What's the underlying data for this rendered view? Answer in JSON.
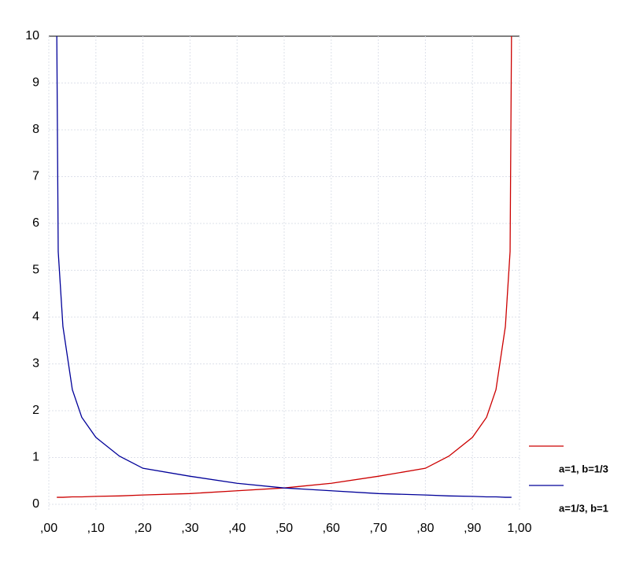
{
  "chart_data": {
    "type": "line",
    "x": [
      0.017,
      0.02,
      0.03,
      0.05,
      0.07,
      0.1,
      0.15,
      0.2,
      0.3,
      0.4,
      0.5,
      0.6,
      0.7,
      0.8,
      0.85,
      0.9,
      0.93,
      0.95,
      0.97,
      0.98,
      0.983
    ],
    "series": [
      {
        "name": "a=1, b=1/3",
        "color": "#cc0000",
        "values": [
          0.15,
          0.15,
          0.15,
          0.16,
          0.16,
          0.17,
          0.18,
          0.2,
          0.23,
          0.29,
          0.35,
          0.45,
          0.6,
          0.77,
          1.03,
          1.43,
          1.86,
          2.45,
          3.8,
          5.4,
          10
        ]
      },
      {
        "name": "a=1/3, b=1",
        "color": "#000099",
        "values": [
          10,
          5.4,
          3.8,
          2.45,
          1.86,
          1.43,
          1.03,
          0.77,
          0.6,
          0.45,
          0.35,
          0.29,
          0.23,
          0.2,
          0.18,
          0.17,
          0.16,
          0.16,
          0.15,
          0.15,
          0.15
        ]
      }
    ],
    "xlim": [
      0,
      1
    ],
    "ylim": [
      0,
      10
    ],
    "xticks": [
      {
        "value": 0,
        "label": ",00"
      },
      {
        "value": 0.1,
        "label": ",10"
      },
      {
        "value": 0.2,
        "label": ",20"
      },
      {
        "value": 0.3,
        "label": ",30"
      },
      {
        "value": 0.4,
        "label": ",40"
      },
      {
        "value": 0.5,
        "label": ",50"
      },
      {
        "value": 0.6,
        "label": ",60"
      },
      {
        "value": 0.7,
        "label": ",70"
      },
      {
        "value": 0.8,
        "label": ",80"
      },
      {
        "value": 0.9,
        "label": ",90"
      },
      {
        "value": 1,
        "label": "1,00"
      }
    ],
    "yticks": [
      0,
      1,
      2,
      3,
      4,
      5,
      6,
      7,
      8,
      9,
      10
    ],
    "grid": true,
    "legend": "right"
  }
}
